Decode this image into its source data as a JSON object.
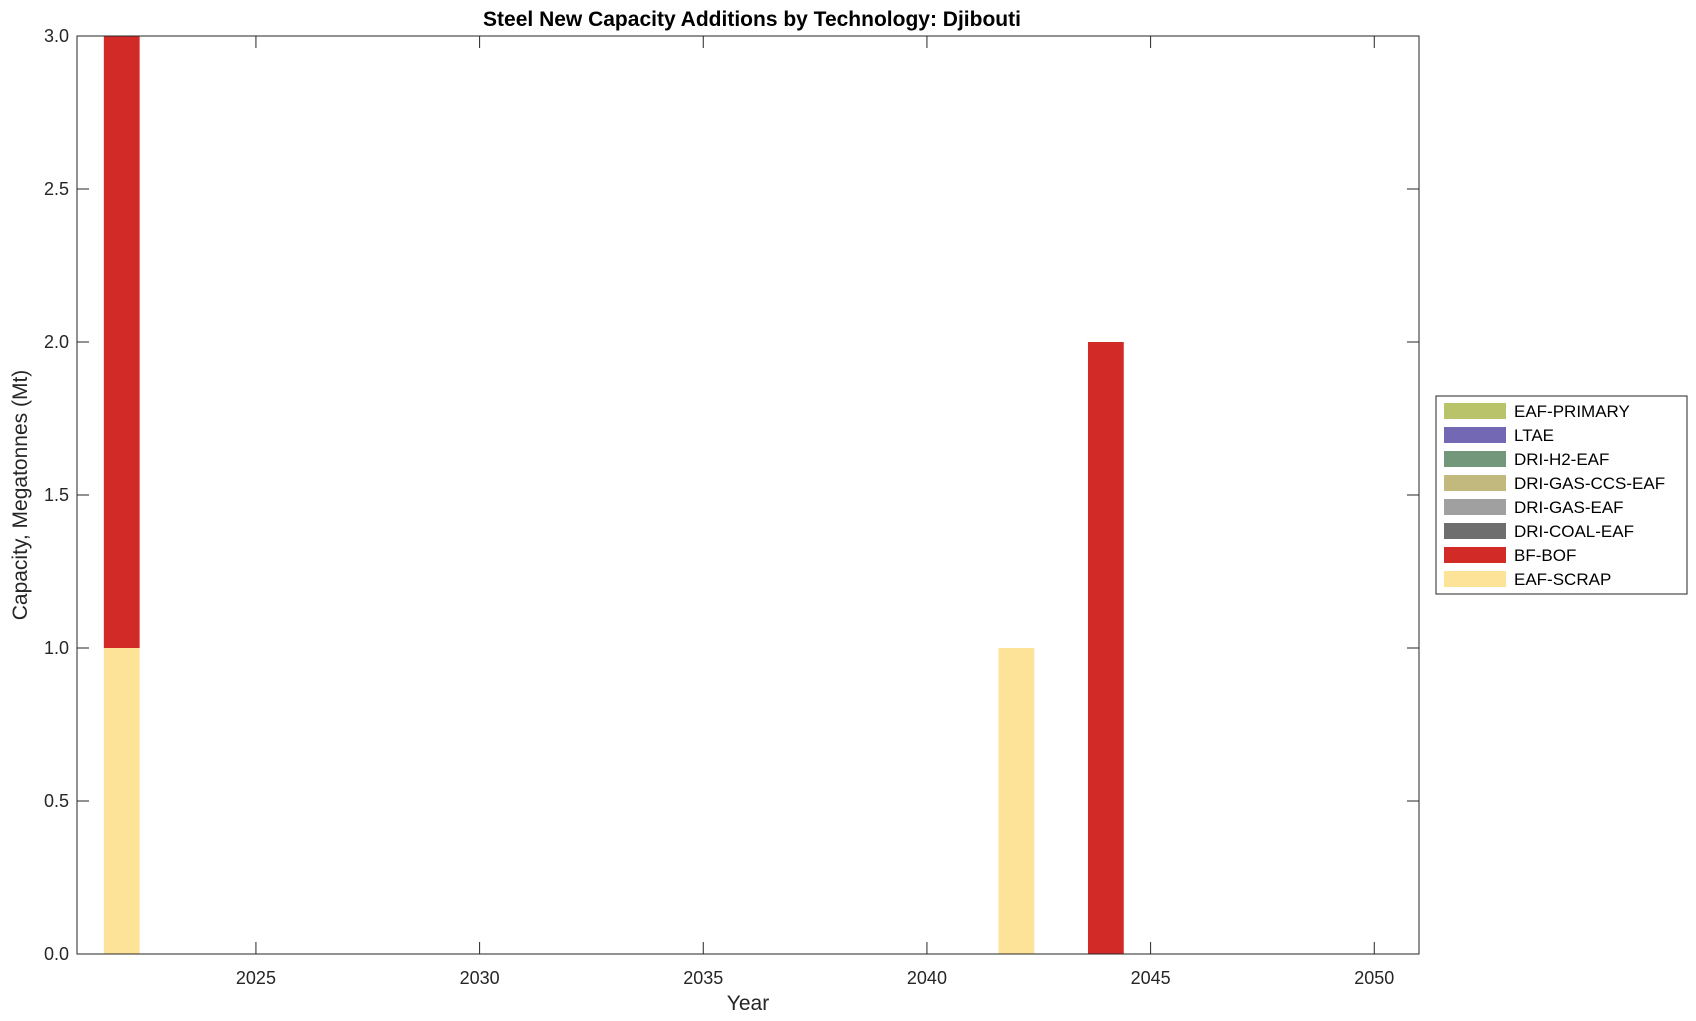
{
  "chart_data": {
    "type": "bar",
    "stacked": true,
    "title": "Steel New Capacity Additions by Technology: Djibouti",
    "xlabel": "Year",
    "ylabel": "Capacity, Megatonnes (Mt)",
    "xlim": [
      2021,
      2051
    ],
    "ylim": [
      0,
      3
    ],
    "x_ticks": [
      2025,
      2030,
      2035,
      2040,
      2045,
      2050
    ],
    "y_ticks": [
      0.0,
      0.5,
      1.0,
      1.5,
      2.0,
      2.5,
      3.0
    ],
    "y_tick_labels": [
      "0.0",
      "0.5",
      "1.0",
      "1.5",
      "2.0",
      "2.5",
      "3.0"
    ],
    "grid": false,
    "legend_position": "right",
    "x": [
      2022,
      2042,
      2044
    ],
    "series": [
      {
        "name": "EAF-SCRAP",
        "color": "#FDE397",
        "values": [
          1,
          1,
          0
        ]
      },
      {
        "name": "BF-BOF",
        "color": "#D22A26",
        "values": [
          2,
          0,
          2
        ]
      },
      {
        "name": "DRI-COAL-EAF",
        "color": "#6E6E6E",
        "values": [
          0,
          0,
          0
        ]
      },
      {
        "name": "DRI-GAS-EAF",
        "color": "#A0A0A0",
        "values": [
          0,
          0,
          0
        ]
      },
      {
        "name": "DRI-GAS-CCS-EAF",
        "color": "#C2B97E",
        "values": [
          0,
          0,
          0
        ]
      },
      {
        "name": "DRI-H2-EAF",
        "color": "#72977A",
        "values": [
          0,
          0,
          0
        ]
      },
      {
        "name": "LTAE",
        "color": "#7268B3",
        "values": [
          0,
          0,
          0
        ]
      },
      {
        "name": "EAF-PRIMARY",
        "color": "#B9C46A",
        "values": [
          0,
          0,
          0
        ]
      }
    ],
    "legend_order": [
      "EAF-PRIMARY",
      "LTAE",
      "DRI-H2-EAF",
      "DRI-GAS-CCS-EAF",
      "DRI-GAS-EAF",
      "DRI-COAL-EAF",
      "BF-BOF",
      "EAF-SCRAP"
    ]
  }
}
